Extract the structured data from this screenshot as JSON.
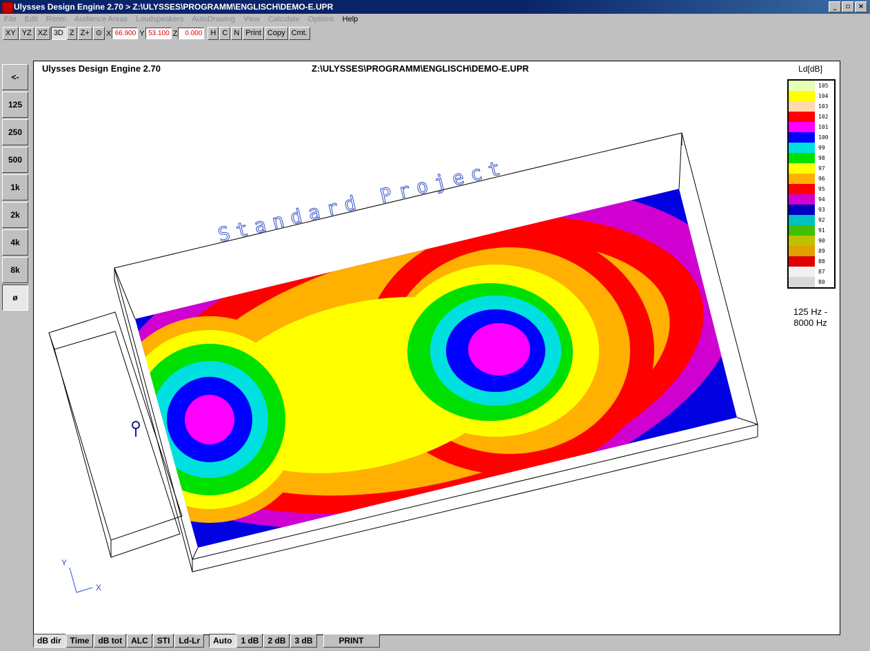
{
  "window": {
    "title": "Ulysses Design Engine 2.70 > Z:\\ULYSSES\\PROGRAMM\\ENGLISCH\\DEMO-E.UPR",
    "min": "_",
    "max": "▫",
    "close": "×"
  },
  "menu": [
    "File",
    "Edit",
    "Room",
    "Audience Areas",
    "Loudspeakers",
    "AutoDrawing",
    "View",
    "Calculate",
    "Options",
    "Help"
  ],
  "toolbar": {
    "views": [
      "XY",
      "YZ",
      "XZ",
      "3D",
      "Z",
      "Z+",
      "⊙"
    ],
    "x_label": "X",
    "x_value": "66.900",
    "y_label": "Y",
    "y_value": "53.100",
    "z_label": "Z",
    "z_value": "0.000",
    "actions": [
      "H",
      "C",
      "N",
      "Print",
      "Copy",
      "Cmt."
    ]
  },
  "left_buttons": [
    "<-",
    "125",
    "250",
    "500",
    "1k",
    "2k",
    "4k",
    "8k",
    "ø"
  ],
  "header": {
    "app": "Ulysses Design Engine 2.70",
    "path": "Z:\\ULYSSES\\PROGRAMM\\ENGLISCH\\DEMO-E.UPR"
  },
  "plot": {
    "project_label": "Standard Project",
    "axis_y": "Y",
    "axis_x": "X"
  },
  "legend": {
    "title": "Ld[dB]",
    "freq": "125 Hz -\n8000 Hz",
    "levels": [
      {
        "value": "105",
        "color": "#e8ffb8"
      },
      {
        "value": "104",
        "color": "#ffff00"
      },
      {
        "value": "103",
        "color": "#ffd8b0"
      },
      {
        "value": "102",
        "color": "#ff0000"
      },
      {
        "value": "101",
        "color": "#ff00ff"
      },
      {
        "value": "100",
        "color": "#0000ff"
      },
      {
        "value": "99",
        "color": "#00e0e0"
      },
      {
        "value": "98",
        "color": "#00e000"
      },
      {
        "value": "97",
        "color": "#ffff00"
      },
      {
        "value": "96",
        "color": "#ffb000"
      },
      {
        "value": "95",
        "color": "#ff0000"
      },
      {
        "value": "94",
        "color": "#d000d0"
      },
      {
        "value": "93",
        "color": "#0000c0"
      },
      {
        "value": "92",
        "color": "#00c0c0"
      },
      {
        "value": "91",
        "color": "#40c000"
      },
      {
        "value": "90",
        "color": "#c0c000"
      },
      {
        "value": "89",
        "color": "#e0a000"
      },
      {
        "value": "88",
        "color": "#e00000"
      },
      {
        "value": "87",
        "color": "#f0f0f0"
      },
      {
        "value": "80",
        "color": "#d8d8d8"
      }
    ]
  },
  "bottom_buttons": [
    "dB dir",
    "Time",
    "dB tot",
    "ALC",
    "STI",
    "Ld-Lr",
    "Auto",
    "1 dB",
    "2 dB",
    "3 dB",
    "PRINT"
  ],
  "colors": {
    "title_bar": "#0a246a",
    "face": "#c0c0c0",
    "magenta": "#ff00ff",
    "blue": "#0000ff",
    "cyan": "#00e0e0",
    "green": "#00e000",
    "yellow": "#ffff00",
    "orange": "#ffb000",
    "red": "#ff0000",
    "purple": "#d000d0"
  }
}
